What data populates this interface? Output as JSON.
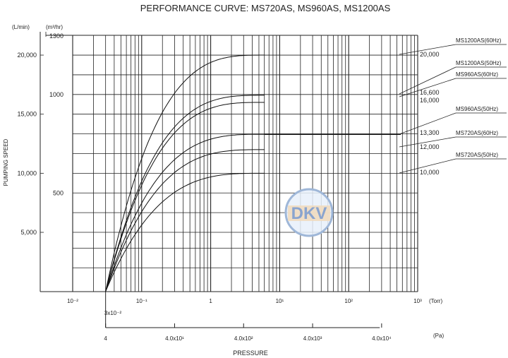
{
  "chart_data": {
    "type": "line",
    "title": "PERFORMANCE CURVE: MS720AS, MS960AS, MS1200AS",
    "xlabel": "PRESSURE",
    "ylabel": "PUMPING SPEED",
    "y_units": {
      "lmin": "(L/min)",
      "m3hr": "(m³/hr)"
    },
    "y_ticks_lmin": [
      "20,000",
      "15,000",
      "10,000",
      "5,000"
    ],
    "y_ticks_m3hr": [
      "1300",
      "1000",
      "500"
    ],
    "x_ticks_torr": [
      "10⁻²",
      "10⁻¹",
      "1",
      "10¹",
      "10²",
      "10³"
    ],
    "x_units_torr": "(Torr)",
    "x_ticks_pa": [
      "4",
      "4.0x10¹",
      "4.0x10²",
      "4.0x10³",
      "4.0x10⁴"
    ],
    "x_units_pa": "(Pa)",
    "x_start_label": "3x10⁻²",
    "x_scale": "log",
    "x_range_torr": [
      0.01,
      1000
    ],
    "y_range_lmin": [
      0,
      22000
    ],
    "grid": true,
    "watermark": "DKV",
    "series": [
      {
        "name": "MS1200AS(60Hz)",
        "end_value_label": "20,000",
        "plateau_lmin": 20000,
        "curve_end_torr": 6
      },
      {
        "name": "MS1200AS(50Hz)",
        "end_value_label": "16,600",
        "plateau_lmin": 16600,
        "curve_end_torr": 6
      },
      {
        "name": "MS960AS(60Hz)",
        "end_value_label": "16,000",
        "plateau_lmin": 16000,
        "curve_end_torr": 6
      },
      {
        "name": "MS960AS(50Hz)",
        "end_value_label": "13,300",
        "plateau_lmin": 13300,
        "curve_end_torr": 6
      },
      {
        "name": "MS720AS(60Hz)",
        "end_value_label": "12,000",
        "plateau_lmin": 12000,
        "curve_end_torr": 6
      },
      {
        "name": "MS720AS(50Hz)",
        "end_value_label": "10,000",
        "plateau_lmin": 10000,
        "curve_end_torr": 6
      }
    ],
    "curve_start_torr": 0.03,
    "flat_line_series": "MS960AS(50Hz)"
  }
}
